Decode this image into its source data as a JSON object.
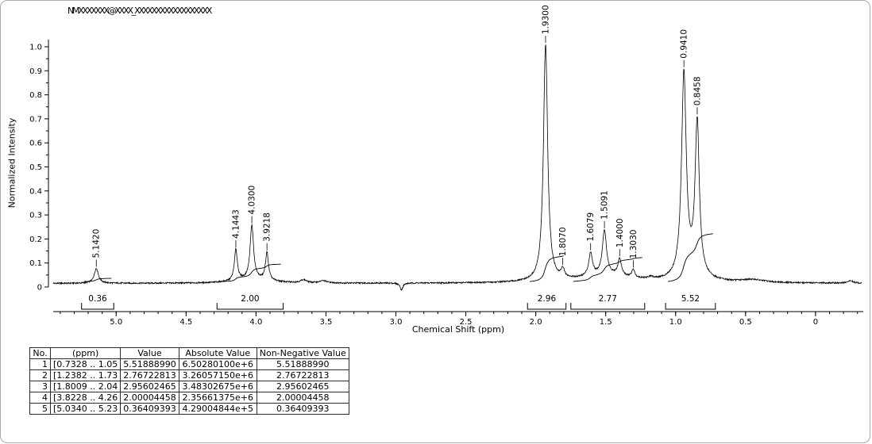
{
  "window": {
    "background": "#ffffff",
    "border_color": "#a9a9a9"
  },
  "chart_data": {
    "type": "line",
    "title": "NMXXXXXXX@XXXX_XXXXXXXXXXXXXXXXXX",
    "xlabel": "Chemical Shift (ppm)",
    "ylabel": "Normalized Intensity",
    "xlim": [
      5.45,
      -0.33
    ],
    "ylim": [
      0,
      1.05
    ],
    "line_color": "#000000",
    "x_ticks": [
      {
        "ppm": 5.0,
        "label": "5.0"
      },
      {
        "ppm": 4.5,
        "label": "4.5"
      },
      {
        "ppm": 4.0,
        "label": "4.0"
      },
      {
        "ppm": 3.5,
        "label": "3.5"
      },
      {
        "ppm": 3.0,
        "label": "3.0"
      },
      {
        "ppm": 2.5,
        "label": "2.5"
      },
      {
        "ppm": 2.0,
        "label": "2.0"
      },
      {
        "ppm": 1.5,
        "label": "1.5"
      },
      {
        "ppm": 1.0,
        "label": "1.0"
      },
      {
        "ppm": 0.5,
        "label": "0.5"
      },
      {
        "ppm": 0.0,
        "label": "0"
      }
    ],
    "y_ticks": [
      {
        "v": 0.0,
        "label": "0"
      },
      {
        "v": 0.1,
        "label": "0.1"
      },
      {
        "v": 0.2,
        "label": "0.2"
      },
      {
        "v": 0.3,
        "label": "0.3"
      },
      {
        "v": 0.4,
        "label": "0.4"
      },
      {
        "v": 0.5,
        "label": "0.5"
      },
      {
        "v": 0.6,
        "label": "0.6"
      },
      {
        "v": 0.7,
        "label": "0.7"
      },
      {
        "v": 0.8,
        "label": "0.8"
      },
      {
        "v": 0.9,
        "label": "0.9"
      },
      {
        "v": 1.0,
        "label": "1.0"
      }
    ],
    "baseline": 0.015,
    "integral_scale": 0.036,
    "peaks": [
      {
        "ppm": 5.142,
        "label": "5.1420",
        "height": 0.062,
        "width": 0.018
      },
      {
        "ppm": 4.1443,
        "label": "4.1443",
        "height": 0.13,
        "width": 0.013
      },
      {
        "ppm": 4.03,
        "label": "4.0300",
        "height": 0.225,
        "width": 0.015
      },
      {
        "ppm": 3.9218,
        "label": "3.9218",
        "height": 0.115,
        "width": 0.013
      },
      {
        "ppm": 1.93,
        "label": "1.9300",
        "height": 0.985,
        "width": 0.018
      },
      {
        "ppm": 1.807,
        "label": "1.8070",
        "height": 0.035,
        "width": 0.015
      },
      {
        "ppm": 1.6079,
        "label": "1.6079",
        "height": 0.095,
        "width": 0.016
      },
      {
        "ppm": 1.5091,
        "label": "1.5091",
        "height": 0.185,
        "width": 0.018
      },
      {
        "ppm": 1.4,
        "label": "1.4000",
        "height": 0.07,
        "width": 0.015
      },
      {
        "ppm": 1.303,
        "label": "1.3030",
        "height": 0.032,
        "width": 0.013
      },
      {
        "ppm": 0.941,
        "label": "0.9410",
        "height": 0.845,
        "width": 0.02
      },
      {
        "ppm": 0.8458,
        "label": "0.8458",
        "height": 0.63,
        "width": 0.018
      }
    ],
    "minor_peaks": [
      {
        "ppm": 4.02,
        "height": 0.015,
        "width": 0.15
      },
      {
        "ppm": 3.66,
        "height": 0.012,
        "width": 0.025
      },
      {
        "ppm": 3.52,
        "height": 0.009,
        "width": 0.03
      },
      {
        "ppm": 2.96,
        "height": -0.028,
        "width": 0.012
      },
      {
        "ppm": 1.5,
        "height": 0.03,
        "width": 0.25
      },
      {
        "ppm": 1.18,
        "height": 0.008,
        "width": 0.02
      },
      {
        "ppm": 0.88,
        "height": 0.03,
        "width": 0.09
      },
      {
        "ppm": 0.45,
        "height": 0.012,
        "width": 0.1
      },
      {
        "ppm": -0.25,
        "height": 0.01,
        "width": 0.02
      }
    ],
    "integral_regions": [
      {
        "label": "0.36",
        "value": 0.36409393,
        "from": 5.23,
        "to": 5.034
      },
      {
        "label": "2.00",
        "value": 2.00004458,
        "from": 4.262,
        "to": 3.8228
      },
      {
        "label": "2.96",
        "value": 2.95602465,
        "from": 2.042,
        "to": 1.8009
      },
      {
        "label": "2.77",
        "value": 2.76722813,
        "from": 1.732,
        "to": 1.2382
      },
      {
        "label": "5.52",
        "value": 5.5188899,
        "from": 1.055,
        "to": 0.7328
      }
    ]
  },
  "table": {
    "headers": [
      "No.",
      "(ppm)",
      "Value",
      "Absolute Value",
      "Non-Negative Value"
    ],
    "rows": [
      [
        "1",
        "[0.7328 .. 1.05",
        "5.51888990",
        "6.50280100e+6",
        "5.51888990"
      ],
      [
        "2",
        "[1.2382 .. 1.73",
        "2.76722813",
        "3.26057150e+6",
        "2.76722813"
      ],
      [
        "3",
        "[1.8009 .. 2.04",
        "2.95602465",
        "3.48302675e+6",
        "2.95602465"
      ],
      [
        "4",
        "[3.8228 .. 4.26",
        "2.00004458",
        "2.35661375e+6",
        "2.00004458"
      ],
      [
        "5",
        "[5.0340 .. 5.23",
        "0.36409393",
        "4.29004844e+5",
        "0.36409393"
      ]
    ]
  }
}
